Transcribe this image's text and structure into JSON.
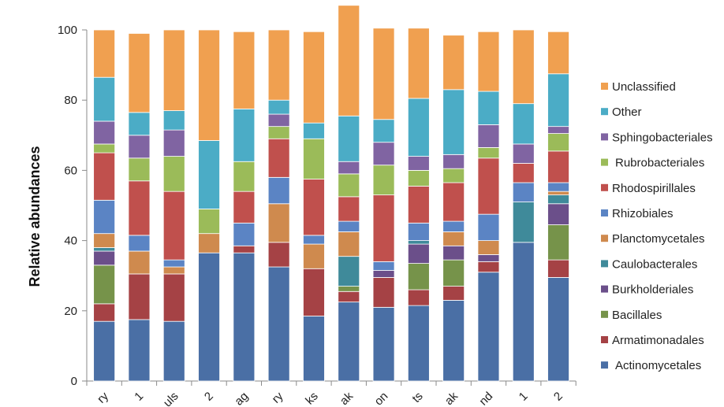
{
  "chart_data": {
    "type": "bar",
    "stacked": true,
    "ylabel": "Relative abundances",
    "xlabel": "",
    "ylim": [
      0,
      100
    ],
    "yticks": [
      0,
      20,
      40,
      60,
      80,
      100
    ],
    "grid": false,
    "legend_position": "right",
    "categories": [
      "ry",
      "1",
      "uls",
      "2",
      "ag",
      "ry",
      "ks",
      "ak",
      "on",
      "ts",
      "ak",
      "nd",
      "1",
      "2"
    ],
    "series": [
      {
        "name": "Actinomycetales",
        "color": "#4a6fa5",
        "values": [
          17,
          17.5,
          17,
          36.5,
          36.5,
          32.5,
          18.5,
          22.5,
          21,
          21.5,
          23,
          31,
          39.5,
          29.5
        ]
      },
      {
        "name": "Armatimonadales",
        "color": "#a54245",
        "values": [
          5,
          13,
          13.5,
          0,
          2,
          7,
          13.5,
          3,
          8.5,
          4.5,
          4,
          3,
          0,
          5
        ]
      },
      {
        "name": "Bacillales",
        "color": "#76934a",
        "values": [
          11,
          0,
          0,
          0,
          0,
          0,
          0,
          1.5,
          0,
          7.5,
          7.5,
          0,
          0,
          10
        ]
      },
      {
        "name": "Burkholderiales",
        "color": "#6b4f8a",
        "values": [
          4,
          0,
          0,
          0,
          0,
          0,
          0,
          0,
          2,
          5.5,
          4,
          2,
          0,
          6
        ]
      },
      {
        "name": "Caulobacterales",
        "color": "#3f8a9a",
        "values": [
          1,
          0,
          0,
          0,
          0,
          0,
          0,
          8.5,
          0,
          1,
          0,
          0,
          11.5,
          2.5
        ]
      },
      {
        "name": "Planctomycetales",
        "color": "#cf8a4e",
        "values": [
          4,
          6.5,
          2,
          5.5,
          0,
          11,
          7,
          7,
          0,
          0,
          4,
          4,
          0,
          1
        ]
      },
      {
        "name": "Rhizobiales",
        "color": "#5b84c4",
        "values": [
          9.5,
          4.5,
          2,
          0,
          6.5,
          7.5,
          2.5,
          3,
          2.5,
          5,
          3,
          7.5,
          5.5,
          2.5
        ]
      },
      {
        "name": "Rhodospirillales",
        "color": "#c0504d",
        "values": [
          13.5,
          15.5,
          19.5,
          0,
          9,
          11,
          16,
          7,
          19,
          10.5,
          11,
          16,
          5.5,
          9
        ]
      },
      {
        "name": "Rubrobacteriales",
        "color": "#9bbb59",
        "values": [
          2.5,
          6.5,
          10,
          7,
          8.5,
          3.5,
          11.5,
          6.5,
          8.5,
          4.5,
          4,
          3,
          0,
          5
        ]
      },
      {
        "name": "Sphingobacteriales",
        "color": "#8064a2",
        "values": [
          6.5,
          6.5,
          7.5,
          0,
          0,
          3.5,
          0,
          3.5,
          6.5,
          4,
          4,
          6.5,
          5.5,
          2
        ]
      },
      {
        "name": "Other",
        "color": "#4bacc6",
        "values": [
          12.5,
          6.5,
          5.5,
          19.5,
          15,
          4,
          4.5,
          13,
          6.5,
          16.5,
          18.5,
          9.5,
          11.5,
          15
        ]
      },
      {
        "name": "Unclassified",
        "color": "#f0a050",
        "values": [
          13.5,
          22.5,
          23,
          31.5,
          22,
          20,
          26,
          31.5,
          26,
          20,
          15.5,
          17,
          21,
          12
        ]
      }
    ]
  }
}
